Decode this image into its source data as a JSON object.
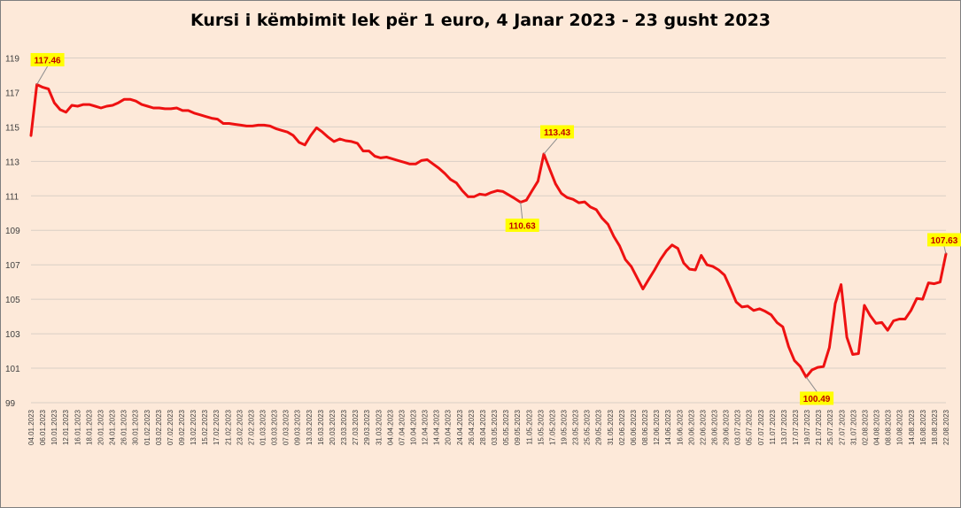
{
  "chart_data": {
    "type": "line",
    "title": "Kursi i këmbimit lek për 1 euro, 4 Janar 2023 - 23 gusht 2023",
    "xlabel": "",
    "ylabel": "",
    "ylim": [
      99,
      120
    ],
    "yticks": [
      99,
      101,
      103,
      105,
      107,
      109,
      111,
      113,
      115,
      117,
      119
    ],
    "grid": true,
    "legend": "none",
    "line_color": "#ee1111",
    "callout_color": "#ffff00",
    "callout_text_color": "#c00000",
    "x_tick_labels": [
      "04.01.2023",
      "06.01.2023",
      "10.01.2023",
      "12.01.2023",
      "16.01.2023",
      "18.01.2023",
      "20.01.2023",
      "24.01.2023",
      "26.01.2023",
      "30.01.2023",
      "01.02.2023",
      "03.02.2023",
      "07.02.2023",
      "09.02.2023",
      "13.02.2023",
      "15.02.2023",
      "17.02.2023",
      "21.02.2023",
      "23.02.2023",
      "27.02.2023",
      "01.03.2023",
      "03.03.2023",
      "07.03.2023",
      "09.03.2023",
      "13.03.2023",
      "16.03.2023",
      "20.03.2023",
      "23.03.2023",
      "27.03.2023",
      "29.03.2023",
      "31.03.2023",
      "04.04.2023",
      "07.04.2023",
      "10.04.2023",
      "12.04.2023",
      "14.04.2023",
      "20.04.2023",
      "24.04.2023",
      "26.04.2023",
      "28.04.2023",
      "03.05.2023",
      "05.05.2023",
      "09.05.2023",
      "11.05.2023",
      "15.05.2023",
      "17.05.2023",
      "19.05.2023",
      "23.05.2023",
      "25.05.2023",
      "29.05.2023",
      "31.05.2023",
      "02.06.2023",
      "06.06.2023",
      "08.06.2023",
      "12.06.2023",
      "14.06.2023",
      "16.06.2023",
      "20.06.2023",
      "22.06.2023",
      "26.06.2023",
      "29.06.2023",
      "03.07.2023",
      "05.07.2023",
      "07.07.2023",
      "11.07.2023",
      "13.07.2023",
      "17.07.2023",
      "19.07.2023",
      "21.07.2023",
      "25.07.2023",
      "27.07.2023",
      "31.07.2023",
      "02.08.2023",
      "04.08.2023",
      "08.08.2023",
      "10.08.2023",
      "14.08.2023",
      "16.08.2023",
      "18.08.2023",
      "22.08.2023"
    ],
    "series": [
      {
        "values": [
          114.5,
          117.46,
          117.3,
          117.2,
          116.4,
          116.0,
          115.85,
          116.25,
          116.2,
          116.3,
          116.3,
          116.2,
          116.1,
          116.2,
          116.25,
          116.4,
          116.6,
          116.6,
          116.5,
          116.3,
          116.2,
          116.1,
          116.1,
          116.05,
          116.05,
          116.1,
          115.95,
          115.95,
          115.8,
          115.7,
          115.6,
          115.5,
          115.45,
          115.2,
          115.2,
          115.15,
          115.1,
          115.05,
          115.05,
          115.1,
          115.1,
          115.05,
          114.9,
          114.8,
          114.7,
          114.5,
          114.1,
          113.95,
          114.5,
          114.95,
          114.7,
          114.4,
          114.15,
          114.3,
          114.2,
          114.15,
          114.05,
          113.6,
          113.6,
          113.3,
          113.2,
          113.25,
          113.15,
          113.05,
          112.95,
          112.85,
          112.85,
          113.05,
          113.1,
          112.85,
          112.6,
          112.3,
          111.95,
          111.75,
          111.3,
          110.95,
          110.95,
          111.1,
          111.05,
          111.2,
          111.3,
          111.25,
          111.05,
          110.85,
          110.63,
          110.75,
          111.3,
          111.85,
          113.43,
          112.55,
          111.7,
          111.15,
          110.9,
          110.8,
          110.6,
          110.65,
          110.35,
          110.2,
          109.7,
          109.35,
          108.65,
          108.1,
          107.3,
          106.9,
          106.25,
          105.6,
          106.15,
          106.7,
          107.3,
          107.8,
          108.15,
          107.95,
          107.1,
          106.75,
          106.7,
          107.55,
          107.0,
          106.9,
          106.7,
          106.4,
          105.65,
          104.85,
          104.55,
          104.6,
          104.35,
          104.45,
          104.3,
          104.1,
          103.65,
          103.4,
          102.25,
          101.45,
          101.1,
          100.49,
          100.9,
          101.05,
          101.1,
          102.2,
          104.75,
          105.85,
          102.8,
          101.8,
          101.85,
          104.65,
          104.05,
          103.6,
          103.65,
          103.2,
          103.75,
          103.85,
          103.85,
          104.35,
          105.05,
          105.0,
          105.95,
          105.9,
          106.0,
          107.63
        ]
      }
    ],
    "callouts": [
      {
        "label": "117.46",
        "value": 117.46
      },
      {
        "label": "113.43",
        "value": 113.43
      },
      {
        "label": "110.63",
        "value": 110.63
      },
      {
        "label": "100.49",
        "value": 100.49
      },
      {
        "label": "107.63",
        "value": 107.63
      }
    ]
  }
}
